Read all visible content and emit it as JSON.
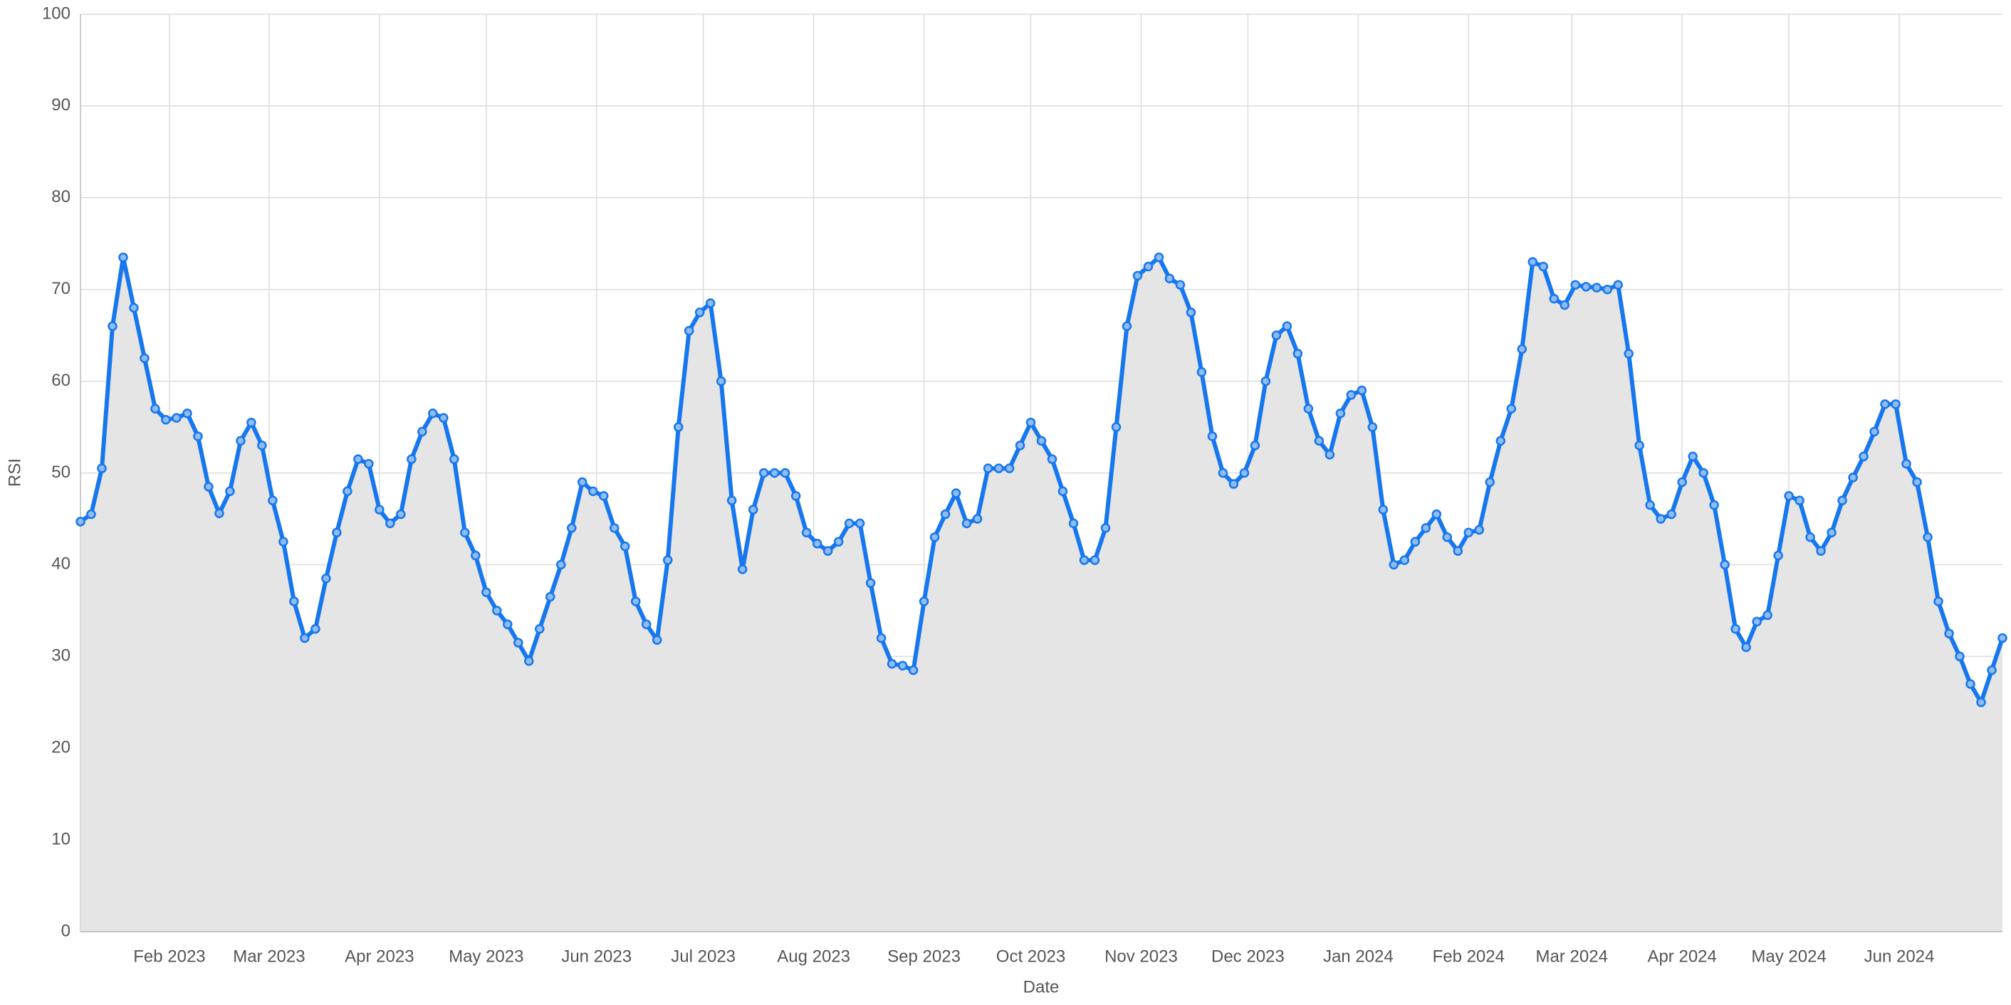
{
  "chart_data": {
    "type": "line",
    "xlabel": "Date",
    "ylabel": "RSI",
    "color": "#1677ee",
    "marker_fill": "#8fbcf5",
    "area_color": "#e5e5e5",
    "fill_area": true,
    "markers": true,
    "grid": true,
    "values": [
      44.7,
      45.5,
      50.5,
      66,
      73.5,
      68,
      62.5,
      57,
      55.8,
      56,
      56.5,
      54,
      48.5,
      45.6,
      48,
      53.5,
      55.5,
      53,
      47,
      42.5,
      36,
      32,
      33,
      38.5,
      43.5,
      48,
      51.5,
      51,
      46,
      44.5,
      45.5,
      51.5,
      54.5,
      56.5,
      56,
      51.5,
      43.5,
      41,
      37,
      35,
      33.5,
      31.5,
      29.5,
      33,
      36.5,
      40,
      44,
      49,
      48,
      47.5,
      44,
      42,
      36,
      33.5,
      31.8,
      40.5,
      55,
      65.5,
      67.5,
      68.5,
      60,
      47,
      39.5,
      46,
      50,
      50,
      50,
      47.5,
      43.5,
      42.3,
      41.5,
      42.5,
      44.5,
      44.5,
      38,
      32,
      29.2,
      29,
      28.5,
      36,
      43,
      45.5,
      47.8,
      44.5,
      45,
      50.5,
      50.5,
      50.5,
      53,
      55.5,
      53.5,
      51.5,
      48,
      44.5,
      40.5,
      40.5,
      44,
      55,
      66,
      71.5,
      72.5,
      73.5,
      71.2,
      70.5,
      67.5,
      61,
      54,
      50,
      48.8,
      50,
      53,
      60,
      65,
      66,
      63,
      57,
      53.5,
      52,
      56.5,
      58.5,
      59,
      55,
      46,
      40,
      40.5,
      42.5,
      44,
      45.5,
      43,
      41.5,
      43.5,
      43.8,
      49,
      53.5,
      57,
      63.5,
      73,
      72.5,
      69,
      68.3,
      70.5,
      70.3,
      70.2,
      70,
      70.5,
      63,
      53,
      46.5,
      45,
      45.5,
      49,
      51.8,
      50,
      46.5,
      40,
      33,
      31,
      33.8,
      34.5,
      41,
      47.5,
      47,
      43,
      41.5,
      43.5,
      47,
      49.5,
      51.8,
      54.5,
      57.5,
      57.5,
      51,
      49,
      43,
      36,
      32.5,
      30,
      27,
      25,
      28.5,
      32
    ],
    "xlim": [
      0,
      180
    ],
    "xticks": [
      {
        "value": 8.333,
        "label": "Feb 2023"
      },
      {
        "value": 17.667,
        "label": "Mar 2023"
      },
      {
        "value": 28,
        "label": "Apr 2023"
      },
      {
        "value": 38,
        "label": "May 2023"
      },
      {
        "value": 48.333,
        "label": "Jun 2023"
      },
      {
        "value": 58.333,
        "label": "Jul 2023"
      },
      {
        "value": 68.667,
        "label": "Aug 2023"
      },
      {
        "value": 79,
        "label": "Sep 2023"
      },
      {
        "value": 89,
        "label": "Oct 2023"
      },
      {
        "value": 99.333,
        "label": "Nov 2023"
      },
      {
        "value": 109.333,
        "label": "Dec 2023"
      },
      {
        "value": 119.667,
        "label": "Jan 2024"
      },
      {
        "value": 130,
        "label": "Feb 2024"
      },
      {
        "value": 139.667,
        "label": "Mar 2024"
      },
      {
        "value": 150,
        "label": "Apr 2024"
      },
      {
        "value": 160,
        "label": "May 2024"
      },
      {
        "value": 170.333,
        "label": "Jun 2024"
      }
    ],
    "ylim": [
      0,
      100
    ],
    "yticks": [
      0,
      10,
      20,
      30,
      40,
      50,
      60,
      70,
      80,
      90,
      100
    ]
  }
}
